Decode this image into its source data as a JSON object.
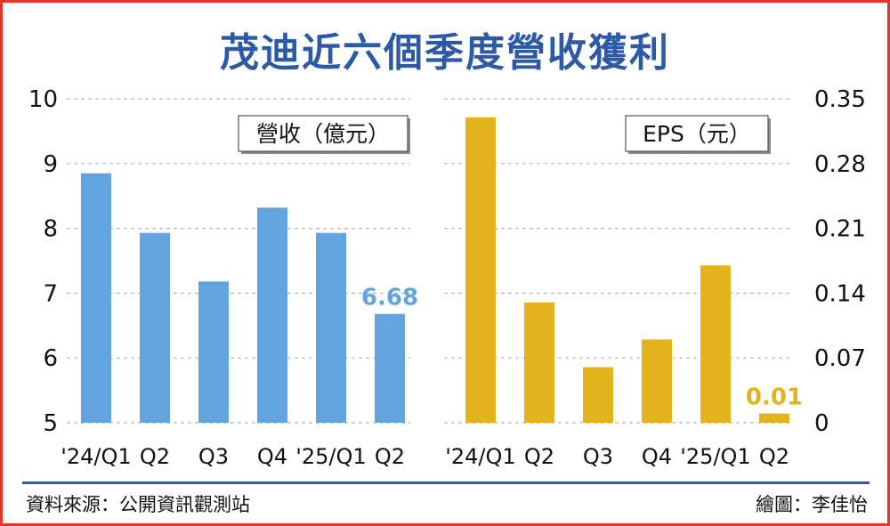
{
  "title": "茂迪近六個季度營收獲利",
  "source": "資料來源：公開資訊觀測站",
  "credit": "繪圖：李佳怡",
  "colors": {
    "revenue": "#62a4e0",
    "eps": "#e3b31e",
    "title": "#2d5aa6",
    "grid": "#b5b5b5",
    "frame": "#e8322d"
  },
  "chart_data": [
    {
      "type": "bar",
      "title": "營收（億元）",
      "categories": [
        "'24/Q1",
        "Q2",
        "Q3",
        "Q4",
        "'25/Q1",
        "Q2"
      ],
      "values": [
        8.85,
        7.93,
        7.18,
        8.32,
        7.93,
        6.68
      ],
      "ylim": [
        5,
        10
      ],
      "yticks": [
        5,
        6,
        7,
        8,
        9,
        10
      ],
      "ytick_labels": [
        "5",
        "6",
        "7",
        "8",
        "9",
        "10"
      ],
      "axis_side": "left",
      "grid": true,
      "data_labels": [
        {
          "index": 5,
          "text": "6.68"
        }
      ]
    },
    {
      "type": "bar",
      "title": "EPS（元）",
      "categories": [
        "'24/Q1",
        "Q2",
        "Q3",
        "Q4",
        "'25/Q1",
        "Q2"
      ],
      "values": [
        0.33,
        0.13,
        0.06,
        0.09,
        0.17,
        0.01
      ],
      "ylim": [
        0,
        0.35
      ],
      "yticks": [
        0,
        0.07,
        0.14,
        0.21,
        0.28,
        0.35
      ],
      "ytick_labels": [
        "0",
        "0.07",
        "0.14",
        "0.21",
        "0.28",
        "0.35"
      ],
      "axis_side": "right",
      "grid": true,
      "data_labels": [
        {
          "index": 5,
          "text": "0.01"
        }
      ]
    }
  ]
}
